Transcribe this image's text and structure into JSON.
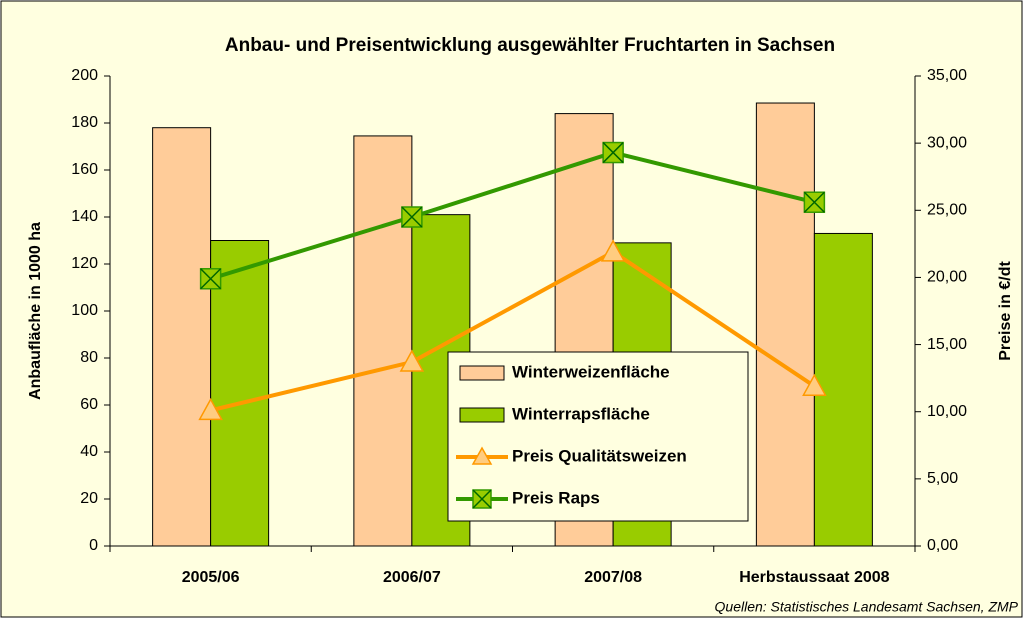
{
  "chart_data": {
    "type": "bar-line",
    "title": "Anbau- und Preisentwicklung ausgewählter Fruchtarten in Sachsen",
    "y_label": "Anbaufläche in 1000 ha",
    "y2_label": "Preise in €/dt",
    "source": "Quellen: Statistisches Landesamt Sachsen, ZMP",
    "categories": [
      "2005/06",
      "2006/07",
      "2007/08",
      "Herbstaussaat 2008"
    ],
    "ylim": [
      0,
      200
    ],
    "yticks": [
      0,
      20,
      40,
      60,
      80,
      100,
      120,
      140,
      160,
      180,
      200
    ],
    "y2lim": [
      0,
      35
    ],
    "y2ticks": [
      {
        "value": 0,
        "label": "0,00"
      },
      {
        "value": 5,
        "label": "5,00"
      },
      {
        "value": 10,
        "label": "10,00"
      },
      {
        "value": 15,
        "label": "15,00"
      },
      {
        "value": 20,
        "label": "20,00"
      },
      {
        "value": 25,
        "label": "25,00"
      },
      {
        "value": 30,
        "label": "30,00"
      },
      {
        "value": 35,
        "label": "35,00"
      }
    ],
    "series": [
      {
        "name": "Winterweizenfläche",
        "kind": "bar",
        "color": "#ffcc99",
        "values": [
          178,
          174.5,
          184,
          188.5
        ]
      },
      {
        "name": "Winterrapsfläche",
        "kind": "bar",
        "color": "#99cc00",
        "values": [
          130,
          141,
          129,
          133
        ]
      },
      {
        "name": "Preis Qualitätsweizen",
        "kind": "line",
        "axis": "y2",
        "color": "#ff9900",
        "values": [
          10.1,
          13.7,
          21.9,
          11.9
        ]
      },
      {
        "name": "Preis Raps",
        "kind": "line",
        "axis": "y2",
        "color": "#339900",
        "values": [
          19.9,
          24.5,
          29.3,
          25.6
        ]
      }
    ]
  }
}
